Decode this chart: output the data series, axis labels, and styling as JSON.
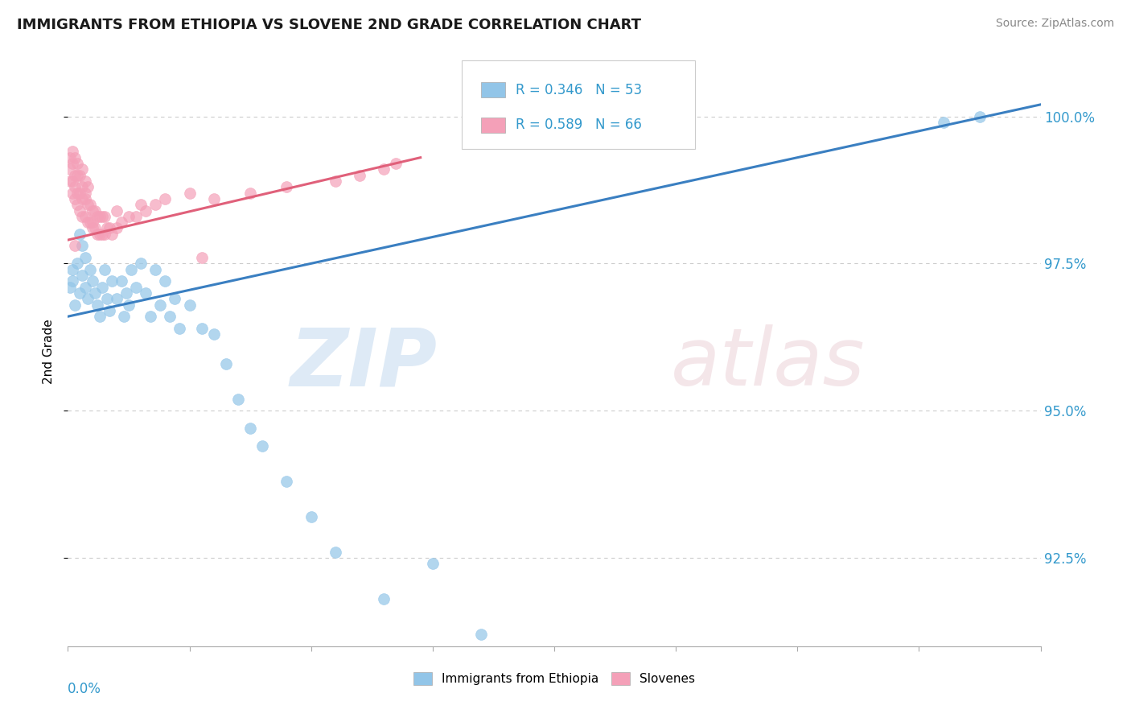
{
  "title": "IMMIGRANTS FROM ETHIOPIA VS SLOVENE 2ND GRADE CORRELATION CHART",
  "source_text": "Source: ZipAtlas.com",
  "ylabel": "2nd Grade",
  "ytick_values": [
    0.925,
    0.95,
    0.975,
    1.0
  ],
  "ytick_labels": [
    "92.5%",
    "95.0%",
    "97.5%",
    "100.0%"
  ],
  "xmin": 0.0,
  "xmax": 0.4,
  "ymin": 0.91,
  "ymax": 1.01,
  "legend_r_ethiopia": "R = 0.346",
  "legend_n_ethiopia": "N = 53",
  "legend_r_slovene": "R = 0.589",
  "legend_n_slovene": "N = 66",
  "color_ethiopia": "#92C5E8",
  "color_slovene": "#F4A0B8",
  "line_color_ethiopia": "#3A7FC1",
  "line_color_slovene": "#E0607A",
  "eth_trend_x0": 0.0,
  "eth_trend_x1": 0.4,
  "eth_trend_y0": 0.966,
  "eth_trend_y1": 1.002,
  "slov_trend_x0": 0.0,
  "slov_trend_x1": 0.145,
  "slov_trend_y0": 0.979,
  "slov_trend_y1": 0.993,
  "eth_x": [
    0.001,
    0.002,
    0.002,
    0.003,
    0.004,
    0.005,
    0.006,
    0.007,
    0.008,
    0.009,
    0.01,
    0.011,
    0.012,
    0.013,
    0.014,
    0.015,
    0.016,
    0.017,
    0.018,
    0.02,
    0.022,
    0.023,
    0.024,
    0.025,
    0.026,
    0.028,
    0.03,
    0.032,
    0.034,
    0.036,
    0.038,
    0.04,
    0.042,
    0.044,
    0.046,
    0.05,
    0.055,
    0.06,
    0.065,
    0.07,
    0.075,
    0.08,
    0.09,
    0.1,
    0.11,
    0.13,
    0.15,
    0.17,
    0.36,
    0.375,
    0.005,
    0.006,
    0.007
  ],
  "eth_y": [
    0.971,
    0.972,
    0.974,
    0.968,
    0.975,
    0.97,
    0.973,
    0.971,
    0.969,
    0.974,
    0.972,
    0.97,
    0.968,
    0.966,
    0.971,
    0.974,
    0.969,
    0.967,
    0.972,
    0.969,
    0.972,
    0.966,
    0.97,
    0.968,
    0.974,
    0.971,
    0.975,
    0.97,
    0.966,
    0.974,
    0.968,
    0.972,
    0.966,
    0.969,
    0.964,
    0.968,
    0.964,
    0.963,
    0.958,
    0.952,
    0.947,
    0.944,
    0.938,
    0.932,
    0.926,
    0.918,
    0.924,
    0.912,
    0.999,
    1.0,
    0.98,
    0.978,
    0.976
  ],
  "slov_x": [
    0.001,
    0.001,
    0.001,
    0.002,
    0.002,
    0.002,
    0.002,
    0.003,
    0.003,
    0.003,
    0.003,
    0.004,
    0.004,
    0.004,
    0.004,
    0.005,
    0.005,
    0.005,
    0.006,
    0.006,
    0.006,
    0.006,
    0.007,
    0.007,
    0.007,
    0.008,
    0.008,
    0.008,
    0.009,
    0.009,
    0.01,
    0.01,
    0.011,
    0.011,
    0.012,
    0.012,
    0.013,
    0.013,
    0.014,
    0.014,
    0.015,
    0.015,
    0.016,
    0.017,
    0.018,
    0.02,
    0.022,
    0.025,
    0.028,
    0.032,
    0.036,
    0.04,
    0.05,
    0.06,
    0.075,
    0.09,
    0.11,
    0.12,
    0.13,
    0.135,
    0.003,
    0.007,
    0.01,
    0.02,
    0.03,
    0.055
  ],
  "slov_y": [
    0.989,
    0.991,
    0.993,
    0.987,
    0.989,
    0.992,
    0.994,
    0.986,
    0.988,
    0.99,
    0.993,
    0.985,
    0.987,
    0.99,
    0.992,
    0.984,
    0.987,
    0.99,
    0.983,
    0.986,
    0.988,
    0.991,
    0.983,
    0.986,
    0.989,
    0.982,
    0.985,
    0.988,
    0.982,
    0.985,
    0.981,
    0.984,
    0.981,
    0.984,
    0.98,
    0.983,
    0.98,
    0.983,
    0.98,
    0.983,
    0.98,
    0.983,
    0.981,
    0.981,
    0.98,
    0.981,
    0.982,
    0.983,
    0.983,
    0.984,
    0.985,
    0.986,
    0.987,
    0.986,
    0.987,
    0.988,
    0.989,
    0.99,
    0.991,
    0.992,
    0.978,
    0.987,
    0.982,
    0.984,
    0.985,
    0.976
  ]
}
